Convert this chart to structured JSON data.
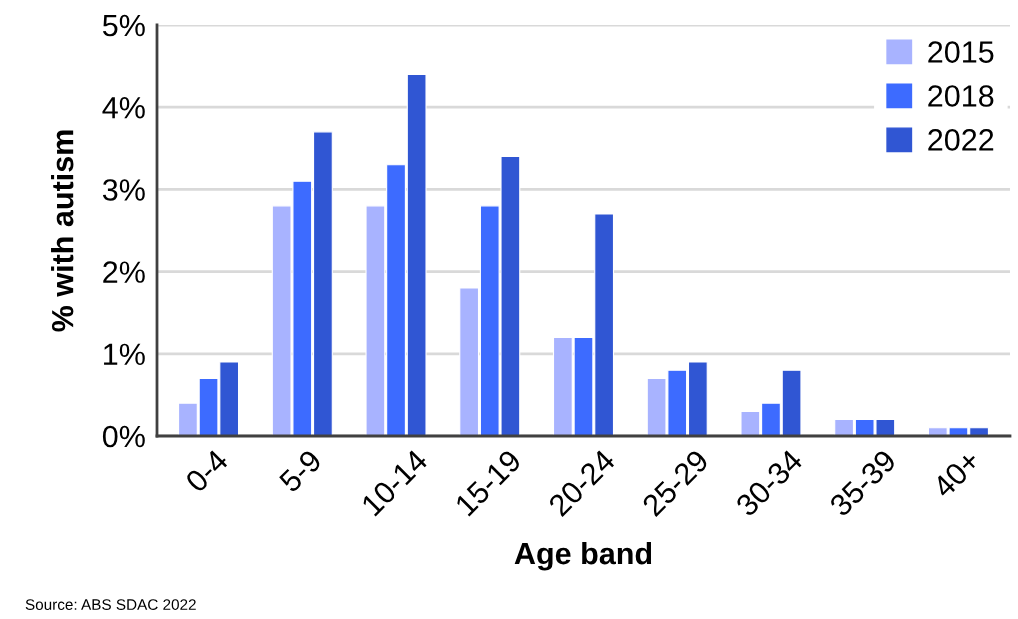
{
  "chart_data": {
    "type": "bar",
    "xlabel": "Age band",
    "ylabel": "% with autism",
    "categories": [
      "0-4",
      "5-9",
      "10-14",
      "15-19",
      "20-24",
      "25-29",
      "30-34",
      "35-39",
      "40+"
    ],
    "series": [
      {
        "name": "2015",
        "color": "#a8b3ff",
        "values": [
          0.4,
          2.8,
          2.8,
          1.8,
          1.2,
          0.7,
          0.3,
          0.2,
          0.1
        ]
      },
      {
        "name": "2018",
        "color": "#3d6bff",
        "values": [
          0.7,
          3.1,
          3.3,
          2.8,
          1.2,
          0.8,
          0.4,
          0.2,
          0.1
        ]
      },
      {
        "name": "2022",
        "color": "#3056d3",
        "values": [
          0.9,
          3.7,
          4.4,
          3.4,
          2.7,
          0.9,
          0.8,
          0.2,
          0.1
        ]
      }
    ],
    "ylim": [
      0,
      5
    ],
    "yticks": [
      {
        "value": 0,
        "label": "0%"
      },
      {
        "value": 1,
        "label": "1%"
      },
      {
        "value": 2,
        "label": "2%"
      },
      {
        "value": 3,
        "label": "3%"
      },
      {
        "value": 4,
        "label": "4%"
      },
      {
        "value": 5,
        "label": "5%"
      }
    ],
    "grid": "y",
    "legend": "top right",
    "annotations": [
      "Source: ABS SDAC 2022"
    ]
  }
}
